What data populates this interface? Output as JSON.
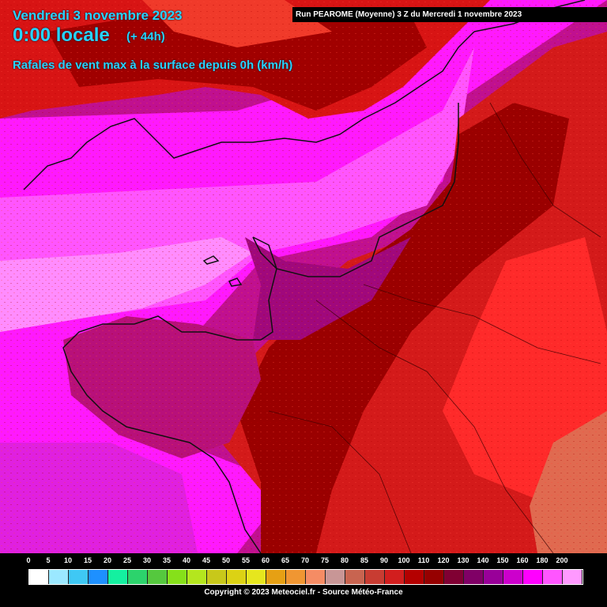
{
  "header": {
    "date": "Vendredi 3 novembre 2023",
    "time": "0:00 locale",
    "offset": "(+ 44h)",
    "parameter": "Rafales de vent max à la surface depuis 0h (km/h)",
    "run": "Run PEAROME (Moyenne) 3 Z du Mercredi 1 novembre 2023"
  },
  "legend": {
    "ticks": [
      "0",
      "5",
      "10",
      "15",
      "20",
      "25",
      "30",
      "35",
      "40",
      "45",
      "50",
      "55",
      "60",
      "65",
      "70",
      "75",
      "80",
      "85",
      "90",
      "100",
      "110",
      "120",
      "130",
      "140",
      "150",
      "160",
      "180",
      "200"
    ],
    "colors": [
      "#ffffff",
      "#9be8ff",
      "#3fc8f4",
      "#1e90ff",
      "#14f0a0",
      "#2cd36c",
      "#55c83e",
      "#86e01a",
      "#b4e61e",
      "#c8c81a",
      "#dcd214",
      "#e6e61e",
      "#e6a014",
      "#f09632",
      "#f58c64",
      "#c89696",
      "#c86450",
      "#c83c32",
      "#d21e1e",
      "#b40000",
      "#960000",
      "#800033",
      "#800066",
      "#990099",
      "#cc00cc",
      "#ff00ff",
      "#ff55ff",
      "#ff99ff"
    ],
    "copyright": "Copyright © 2023 Meteociel.fr - Source Météo-France"
  },
  "map": {
    "land_high": "#e01818",
    "land_dark": "#9a0000",
    "sea_magenta": "#ff00ff",
    "sea_violet": "#a3088e",
    "coast_line": "#111111"
  }
}
